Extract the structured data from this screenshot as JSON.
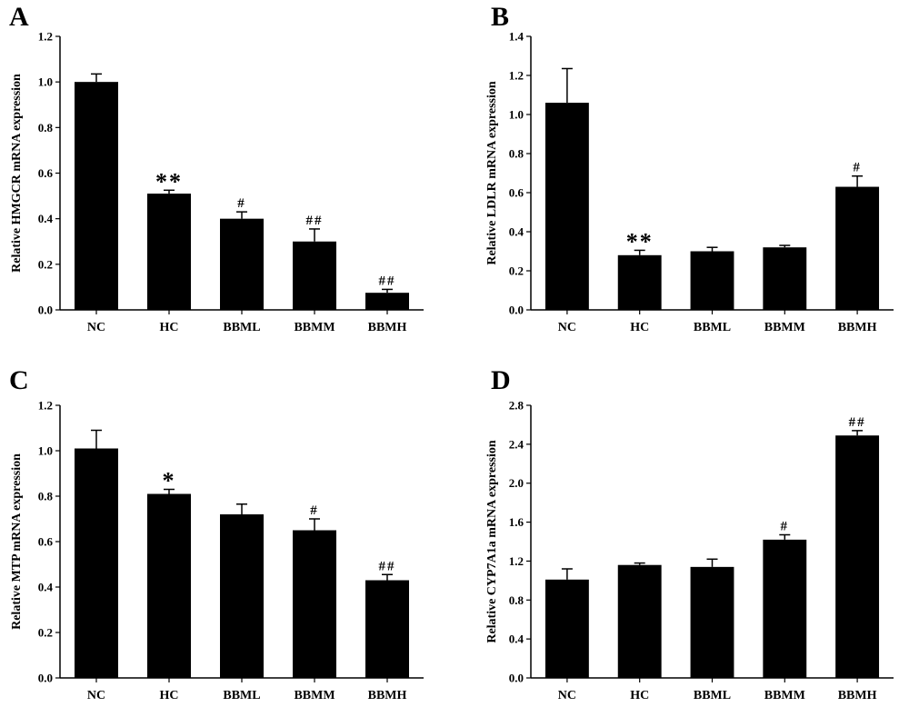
{
  "chart_data": [
    {
      "panel": "A",
      "type": "bar",
      "categories": [
        "NC",
        "HC",
        "BBML",
        "BBMM",
        "BBMH"
      ],
      "values": [
        1.0,
        0.51,
        0.4,
        0.3,
        0.075
      ],
      "errors": [
        0.035,
        0.015,
        0.03,
        0.055,
        0.015
      ],
      "annotations": [
        "",
        "**",
        "#",
        "##",
        "##"
      ],
      "ylabel": "Relative HMGCR mRNA expression",
      "xlabel": "",
      "ylim": [
        0,
        1.2
      ],
      "yticks": [
        "0.0",
        "0.2",
        "0.4",
        "0.6",
        "0.8",
        "1.0",
        "1.2"
      ]
    },
    {
      "panel": "B",
      "type": "bar",
      "categories": [
        "NC",
        "HC",
        "BBML",
        "BBMM",
        "BBMH"
      ],
      "values": [
        1.06,
        0.28,
        0.3,
        0.32,
        0.63
      ],
      "errors": [
        0.175,
        0.025,
        0.02,
        0.01,
        0.055
      ],
      "annotations": [
        "",
        "**",
        "",
        "",
        "#"
      ],
      "ylabel": "Relative LDLR mRNA expression",
      "xlabel": "",
      "ylim": [
        0,
        1.4
      ],
      "yticks": [
        "0.0",
        "0.2",
        "0.4",
        "0.6",
        "0.8",
        "1.0",
        "1.2",
        "1.4"
      ]
    },
    {
      "panel": "C",
      "type": "bar",
      "categories": [
        "NC",
        "HC",
        "BBML",
        "BBMM",
        "BBMH"
      ],
      "values": [
        1.01,
        0.81,
        0.72,
        0.65,
        0.43
      ],
      "errors": [
        0.08,
        0.02,
        0.045,
        0.05,
        0.025
      ],
      "annotations": [
        "",
        "*",
        "",
        "#",
        "##"
      ],
      "ylabel": "Relative MTP mRNA expression",
      "xlabel": "",
      "ylim": [
        0,
        1.2
      ],
      "yticks": [
        "0.0",
        "0.2",
        "0.4",
        "0.6",
        "0.8",
        "1.0",
        "1.2"
      ]
    },
    {
      "panel": "D",
      "type": "bar",
      "categories": [
        "NC",
        "HC",
        "BBML",
        "BBMM",
        "BBMH"
      ],
      "values": [
        1.01,
        1.16,
        1.14,
        1.42,
        2.49
      ],
      "errors": [
        0.11,
        0.02,
        0.08,
        0.05,
        0.05
      ],
      "annotations": [
        "",
        "",
        "",
        "#",
        "##"
      ],
      "ylabel": "Relative CYP7A1a mRNA expression",
      "xlabel": "",
      "ylim": [
        0,
        2.8
      ],
      "yticks": [
        "0.0",
        "0.4",
        "0.8",
        "1.2",
        "1.6",
        "2.0",
        "2.4",
        "2.8"
      ]
    }
  ]
}
